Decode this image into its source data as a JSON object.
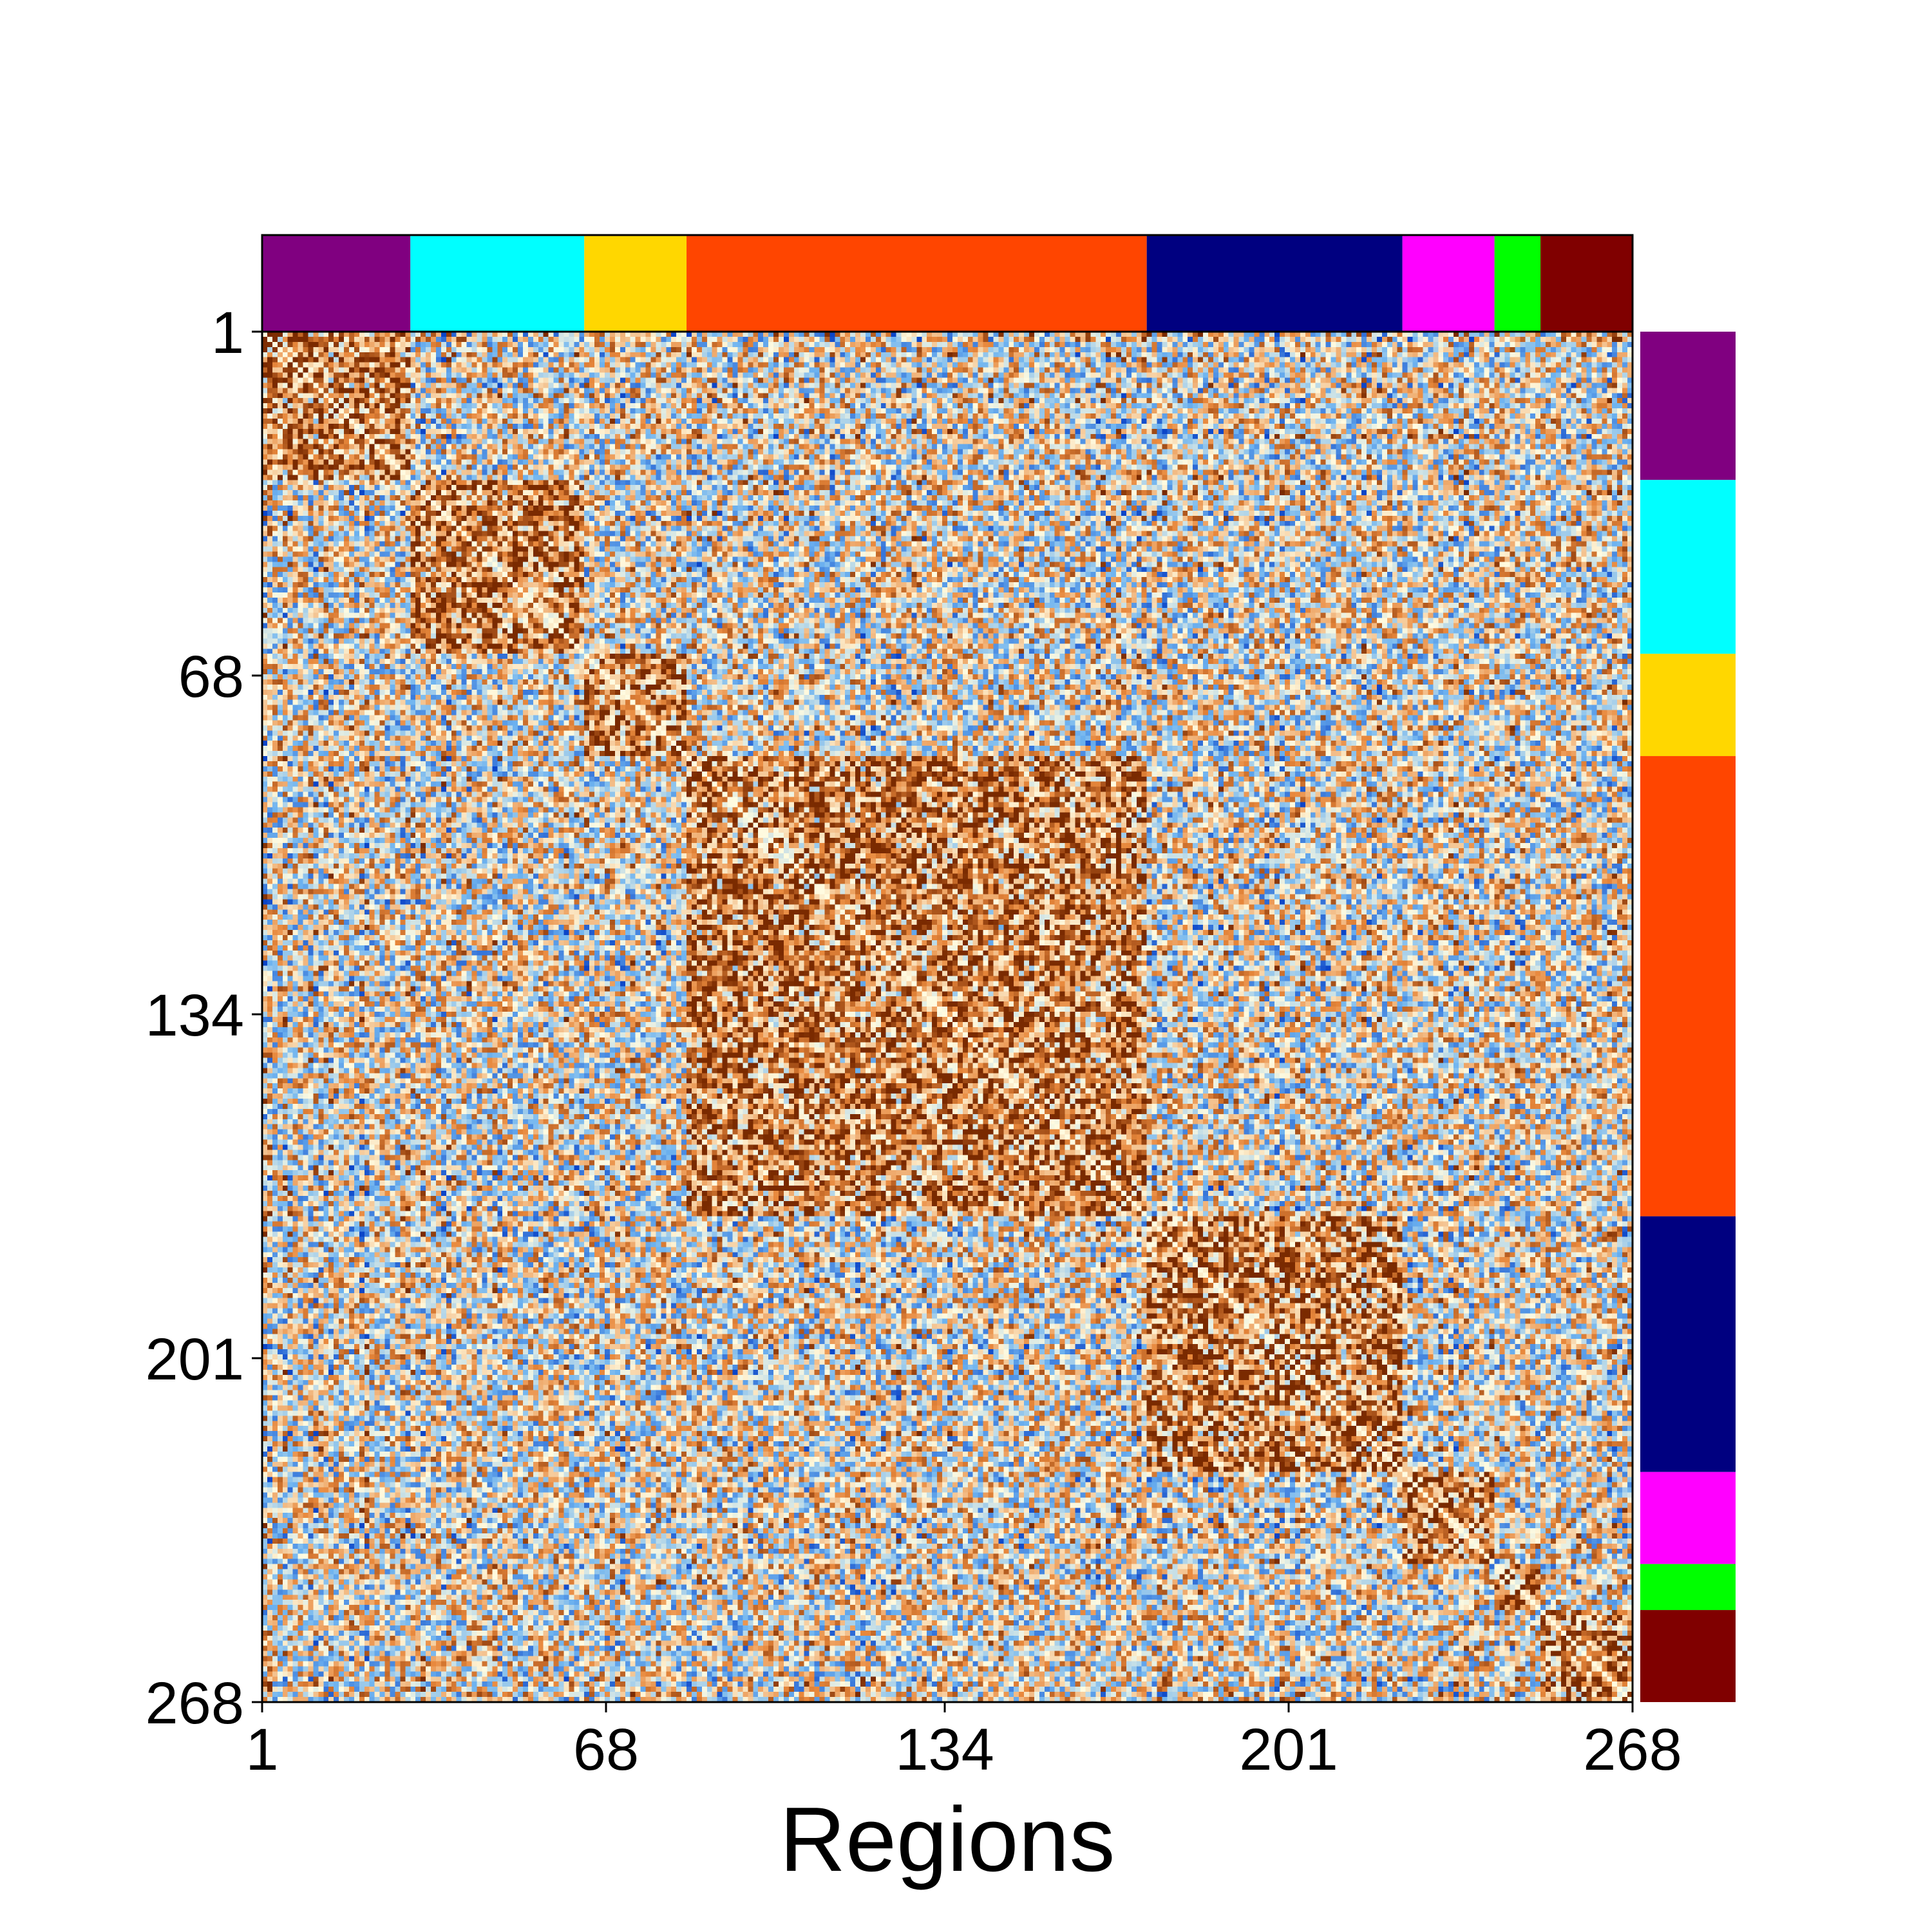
{
  "chart_data": {
    "type": "heatmap",
    "title": "",
    "xlabel": "Regions",
    "ylabel": "",
    "n_regions": 268,
    "x_ticks": [
      "1",
      "68",
      "134",
      "201",
      "268"
    ],
    "y_ticks": [
      "1",
      "68",
      "134",
      "201",
      "268"
    ],
    "colormap": {
      "low": "#0b45c8",
      "mid_low": "#6fb4f0",
      "mid": "#fffbe0",
      "mid_high": "#e8883c",
      "high": "#7a2a00"
    },
    "networks": [
      {
        "start": 1,
        "end": 29,
        "color": "#800080"
      },
      {
        "start": 30,
        "end": 63,
        "color": "#00ffff"
      },
      {
        "start": 64,
        "end": 83,
        "color": "#ffd700"
      },
      {
        "start": 84,
        "end": 173,
        "color": "#ff4500"
      },
      {
        "start": 174,
        "end": 223,
        "color": "#000080"
      },
      {
        "start": 224,
        "end": 241,
        "color": "#ff00ff"
      },
      {
        "start": 242,
        "end": 250,
        "color": "#00ff00"
      },
      {
        "start": 251,
        "end": 268,
        "color": "#800000"
      }
    ],
    "grid": false
  }
}
